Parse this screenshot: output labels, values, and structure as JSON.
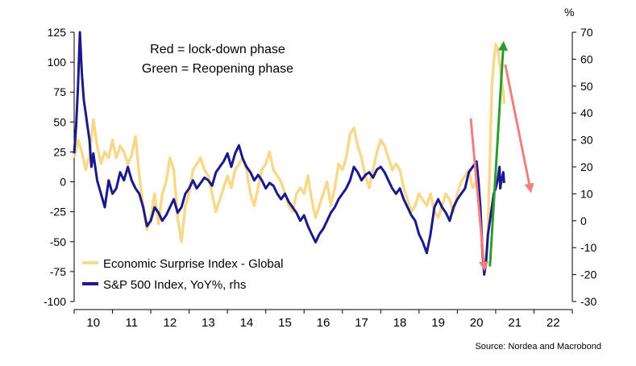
{
  "chart_data": {
    "type": "line",
    "annotation_lines": [
      "Red = lock-down phase",
      "Green = Reopening phase"
    ],
    "y_left": {
      "ticks": [
        125,
        100,
        75,
        50,
        25,
        0,
        -25,
        -50,
        -75,
        -100
      ],
      "range": [
        -100,
        125
      ]
    },
    "y_right": {
      "unit_label": "%",
      "ticks": [
        70,
        60,
        50,
        40,
        30,
        20,
        10,
        0,
        -10,
        -20,
        -30
      ],
      "range": [
        -30,
        70
      ]
    },
    "x": {
      "tick_labels": [
        "10",
        "11",
        "12",
        "13",
        "14",
        "15",
        "16",
        "17",
        "18",
        "19",
        "20",
        "21",
        "22"
      ],
      "range": [
        2009.5,
        2022.5
      ]
    },
    "legend": {
      "placement": "bottom-left",
      "entries": [
        {
          "label": "Economic Surprise Index - Global",
          "color": "#f7d98b"
        },
        {
          "label": "S&P 500 Index, YoY%, rhs",
          "color": "#1a1a8c"
        }
      ]
    },
    "source": "Source: Nordea and Macrobond",
    "series": [
      {
        "name": "Economic Surprise Index - Global",
        "axis": "left",
        "color": "#f7d98b",
        "points": [
          [
            2009.5,
            20
          ],
          [
            2009.6,
            35
          ],
          [
            2009.7,
            25
          ],
          [
            2009.8,
            10
          ],
          [
            2009.9,
            22
          ],
          [
            2010.0,
            52
          ],
          [
            2010.1,
            30
          ],
          [
            2010.2,
            15
          ],
          [
            2010.3,
            25
          ],
          [
            2010.4,
            20
          ],
          [
            2010.5,
            35
          ],
          [
            2010.6,
            20
          ],
          [
            2010.7,
            30
          ],
          [
            2010.8,
            25
          ],
          [
            2010.9,
            15
          ],
          [
            2011.0,
            22
          ],
          [
            2011.1,
            38
          ],
          [
            2011.2,
            5
          ],
          [
            2011.3,
            -20
          ],
          [
            2011.4,
            -40
          ],
          [
            2011.5,
            -30
          ],
          [
            2011.6,
            -10
          ],
          [
            2011.7,
            -35
          ],
          [
            2011.8,
            -10
          ],
          [
            2011.9,
            0
          ],
          [
            2012.0,
            20
          ],
          [
            2012.1,
            10
          ],
          [
            2012.2,
            -30
          ],
          [
            2012.3,
            -50
          ],
          [
            2012.4,
            -20
          ],
          [
            2012.5,
            -10
          ],
          [
            2012.6,
            10
          ],
          [
            2012.7,
            15
          ],
          [
            2012.8,
            20
          ],
          [
            2012.9,
            10
          ],
          [
            2013.0,
            5
          ],
          [
            2013.1,
            -10
          ],
          [
            2013.2,
            -25
          ],
          [
            2013.3,
            -15
          ],
          [
            2013.4,
            -5
          ],
          [
            2013.5,
            5
          ],
          [
            2013.6,
            -5
          ],
          [
            2013.7,
            10
          ],
          [
            2013.8,
            15
          ],
          [
            2013.9,
            20
          ],
          [
            2014.0,
            10
          ],
          [
            2014.1,
            -10
          ],
          [
            2014.2,
            -20
          ],
          [
            2014.3,
            -5
          ],
          [
            2014.4,
            10
          ],
          [
            2014.5,
            15
          ],
          [
            2014.6,
            25
          ],
          [
            2014.7,
            10
          ],
          [
            2014.8,
            5
          ],
          [
            2014.9,
            0
          ],
          [
            2015.0,
            -10
          ],
          [
            2015.1,
            -20
          ],
          [
            2015.2,
            -25
          ],
          [
            2015.3,
            -10
          ],
          [
            2015.4,
            -5
          ],
          [
            2015.5,
            -10
          ],
          [
            2015.6,
            5
          ],
          [
            2015.7,
            -15
          ],
          [
            2015.8,
            -30
          ],
          [
            2015.9,
            -20
          ],
          [
            2016.0,
            -10
          ],
          [
            2016.1,
            0
          ],
          [
            2016.2,
            -20
          ],
          [
            2016.3,
            -5
          ],
          [
            2016.4,
            15
          ],
          [
            2016.5,
            10
          ],
          [
            2016.6,
            20
          ],
          [
            2016.7,
            40
          ],
          [
            2016.8,
            45
          ],
          [
            2016.9,
            30
          ],
          [
            2017.0,
            20
          ],
          [
            2017.1,
            5
          ],
          [
            2017.2,
            -5
          ],
          [
            2017.3,
            10
          ],
          [
            2017.4,
            25
          ],
          [
            2017.5,
            35
          ],
          [
            2017.6,
            30
          ],
          [
            2017.7,
            20
          ],
          [
            2017.8,
            10
          ],
          [
            2017.9,
            15
          ],
          [
            2018.0,
            10
          ],
          [
            2018.1,
            -5
          ],
          [
            2018.2,
            -15
          ],
          [
            2018.3,
            -25
          ],
          [
            2018.4,
            -20
          ],
          [
            2018.5,
            -10
          ],
          [
            2018.6,
            -15
          ],
          [
            2018.7,
            -20
          ],
          [
            2018.8,
            -10
          ],
          [
            2018.9,
            -25
          ],
          [
            2019.0,
            -30
          ],
          [
            2019.1,
            -20
          ],
          [
            2019.2,
            -10
          ],
          [
            2019.3,
            -15
          ],
          [
            2019.4,
            -25
          ],
          [
            2019.5,
            -10
          ],
          [
            2019.6,
            0
          ],
          [
            2019.7,
            5
          ],
          [
            2019.8,
            10
          ],
          [
            2019.9,
            -5
          ],
          [
            2020.0,
            0
          ],
          [
            2020.1,
            -20
          ],
          [
            2020.15,
            -60
          ],
          [
            2020.2,
            -75
          ],
          [
            2020.25,
            -70
          ],
          [
            2020.3,
            -40
          ],
          [
            2020.35,
            20
          ],
          [
            2020.4,
            80
          ],
          [
            2020.45,
            100
          ],
          [
            2020.5,
            115
          ],
          [
            2020.55,
            112
          ],
          [
            2020.6,
            100
          ],
          [
            2020.65,
            85
          ],
          [
            2020.7,
            75
          ],
          [
            2020.72,
            65
          ]
        ]
      },
      {
        "name": "S&P 500 Index, YoY%, rhs",
        "axis": "right",
        "color": "#1a1a8c",
        "points": [
          [
            2009.5,
            25
          ],
          [
            2009.55,
            35
          ],
          [
            2009.6,
            50
          ],
          [
            2009.65,
            70
          ],
          [
            2009.7,
            55
          ],
          [
            2009.75,
            45
          ],
          [
            2009.8,
            40
          ],
          [
            2009.85,
            35
          ],
          [
            2009.9,
            30
          ],
          [
            2009.95,
            20
          ],
          [
            2010.0,
            25
          ],
          [
            2010.1,
            15
          ],
          [
            2010.2,
            10
          ],
          [
            2010.3,
            5
          ],
          [
            2010.4,
            15
          ],
          [
            2010.5,
            10
          ],
          [
            2010.6,
            12
          ],
          [
            2010.7,
            18
          ],
          [
            2010.8,
            15
          ],
          [
            2010.9,
            20
          ],
          [
            2011.0,
            15
          ],
          [
            2011.1,
            12
          ],
          [
            2011.2,
            10
          ],
          [
            2011.3,
            5
          ],
          [
            2011.4,
            -2
          ],
          [
            2011.5,
            0
          ],
          [
            2011.6,
            5
          ],
          [
            2011.7,
            3
          ],
          [
            2011.8,
            0
          ],
          [
            2011.9,
            2
          ],
          [
            2012.0,
            5
          ],
          [
            2012.1,
            8
          ],
          [
            2012.2,
            3
          ],
          [
            2012.3,
            5
          ],
          [
            2012.4,
            10
          ],
          [
            2012.5,
            12
          ],
          [
            2012.6,
            15
          ],
          [
            2012.7,
            12
          ],
          [
            2012.8,
            14
          ],
          [
            2012.9,
            16
          ],
          [
            2013.0,
            15
          ],
          [
            2013.1,
            13
          ],
          [
            2013.2,
            18
          ],
          [
            2013.3,
            20
          ],
          [
            2013.4,
            22
          ],
          [
            2013.5,
            25
          ],
          [
            2013.6,
            20
          ],
          [
            2013.7,
            25
          ],
          [
            2013.8,
            28
          ],
          [
            2013.9,
            23
          ],
          [
            2014.0,
            20
          ],
          [
            2014.1,
            18
          ],
          [
            2014.2,
            15
          ],
          [
            2014.3,
            17
          ],
          [
            2014.4,
            15
          ],
          [
            2014.5,
            12
          ],
          [
            2014.6,
            14
          ],
          [
            2014.7,
            13
          ],
          [
            2014.8,
            10
          ],
          [
            2014.9,
            8
          ],
          [
            2015.0,
            10
          ],
          [
            2015.1,
            7
          ],
          [
            2015.2,
            5
          ],
          [
            2015.3,
            3
          ],
          [
            2015.4,
            0
          ],
          [
            2015.5,
            2
          ],
          [
            2015.6,
            -2
          ],
          [
            2015.7,
            -5
          ],
          [
            2015.8,
            -8
          ],
          [
            2015.9,
            -5
          ],
          [
            2016.0,
            -3
          ],
          [
            2016.1,
            0
          ],
          [
            2016.2,
            3
          ],
          [
            2016.3,
            5
          ],
          [
            2016.4,
            8
          ],
          [
            2016.5,
            10
          ],
          [
            2016.6,
            12
          ],
          [
            2016.7,
            15
          ],
          [
            2016.8,
            20
          ],
          [
            2016.9,
            18
          ],
          [
            2017.0,
            15
          ],
          [
            2017.1,
            17
          ],
          [
            2017.2,
            18
          ],
          [
            2017.3,
            16
          ],
          [
            2017.4,
            19
          ],
          [
            2017.5,
            20
          ],
          [
            2017.6,
            18
          ],
          [
            2017.7,
            15
          ],
          [
            2017.8,
            12
          ],
          [
            2017.9,
            10
          ],
          [
            2018.0,
            12
          ],
          [
            2018.1,
            8
          ],
          [
            2018.2,
            5
          ],
          [
            2018.3,
            2
          ],
          [
            2018.4,
            0
          ],
          [
            2018.5,
            -5
          ],
          [
            2018.6,
            -8
          ],
          [
            2018.7,
            -12
          ],
          [
            2018.8,
            -5
          ],
          [
            2018.9,
            5
          ],
          [
            2019.0,
            8
          ],
          [
            2019.1,
            5
          ],
          [
            2019.2,
            3
          ],
          [
            2019.3,
            0
          ],
          [
            2019.4,
            5
          ],
          [
            2019.5,
            8
          ],
          [
            2019.6,
            10
          ],
          [
            2019.7,
            12
          ],
          [
            2019.8,
            18
          ],
          [
            2019.9,
            20
          ],
          [
            2020.0,
            22
          ],
          [
            2020.05,
            15
          ],
          [
            2020.1,
            5
          ],
          [
            2020.15,
            -10
          ],
          [
            2020.2,
            -20
          ],
          [
            2020.25,
            -15
          ],
          [
            2020.3,
            -5
          ],
          [
            2020.35,
            0
          ],
          [
            2020.4,
            5
          ],
          [
            2020.45,
            10
          ],
          [
            2020.5,
            12
          ],
          [
            2020.55,
            15
          ],
          [
            2020.6,
            20
          ],
          [
            2020.62,
            12
          ],
          [
            2020.65,
            15
          ],
          [
            2020.7,
            18
          ],
          [
            2020.72,
            14
          ]
        ]
      }
    ],
    "arrows": [
      {
        "color": "#f08080",
        "from": [
          2019.85,
          38
        ],
        "to": [
          2020.2,
          -17
        ],
        "axis": "right"
      },
      {
        "color": "#2e9b2e",
        "from": [
          2020.35,
          -17
        ],
        "to": [
          2020.7,
          65
        ],
        "axis": "right"
      },
      {
        "color": "#f08080",
        "from": [
          2020.75,
          58
        ],
        "to": [
          2021.4,
          12
        ],
        "axis": "right"
      }
    ]
  }
}
